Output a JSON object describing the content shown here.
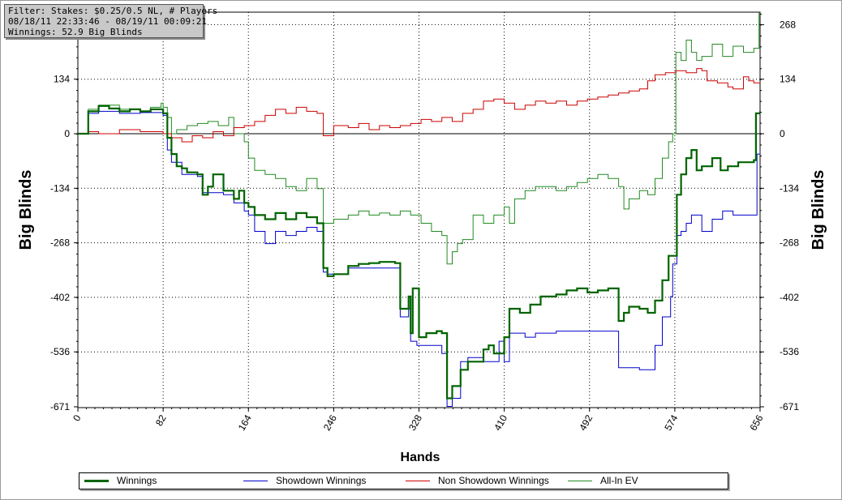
{
  "info_box": {
    "line1": "Filter: Stakes: $0.25/0.5 NL, # Players",
    "line2": "08/18/11 22:33:46 - 08/19/11 00:09:21",
    "line3": "Winnings: 52.9 Big Blinds"
  },
  "chart_data": {
    "type": "line",
    "xlabel": "Hands",
    "ylabel": "Big Blinds",
    "xlim": [
      0,
      656
    ],
    "ylim": [
      -671,
      300
    ],
    "x_ticks": [
      "0",
      "82",
      "164",
      "246",
      "328",
      "410",
      "492",
      "574",
      "656"
    ],
    "y_ticks": [
      "268",
      "134",
      "0",
      "-134",
      "-268",
      "-402",
      "-536",
      "-671"
    ],
    "grid": true,
    "legend_position": "bottom",
    "series": [
      {
        "name": "Winnings",
        "color": "#006400",
        "points": [
          [
            0,
            0
          ],
          [
            10,
            55
          ],
          [
            20,
            68
          ],
          [
            30,
            62
          ],
          [
            40,
            55
          ],
          [
            50,
            60
          ],
          [
            60,
            55
          ],
          [
            70,
            60
          ],
          [
            82,
            50
          ],
          [
            86,
            -10
          ],
          [
            90,
            -50
          ],
          [
            95,
            -80
          ],
          [
            100,
            -85
          ],
          [
            105,
            -95
          ],
          [
            115,
            -100
          ],
          [
            120,
            -150
          ],
          [
            125,
            -130
          ],
          [
            130,
            -100
          ],
          [
            140,
            -140
          ],
          [
            150,
            -160
          ],
          [
            155,
            -140
          ],
          [
            160,
            -170
          ],
          [
            164,
            -180
          ],
          [
            170,
            -200
          ],
          [
            180,
            -210
          ],
          [
            190,
            -195
          ],
          [
            200,
            -210
          ],
          [
            210,
            -195
          ],
          [
            220,
            -205
          ],
          [
            230,
            -220
          ],
          [
            236,
            -330
          ],
          [
            240,
            -350
          ],
          [
            246,
            -345
          ],
          [
            260,
            -325
          ],
          [
            270,
            -320
          ],
          [
            280,
            -318
          ],
          [
            290,
            -315
          ],
          [
            305,
            -318
          ],
          [
            310,
            -430
          ],
          [
            318,
            -400
          ],
          [
            320,
            -490
          ],
          [
            322,
            -380
          ],
          [
            326,
            -380
          ],
          [
            328,
            -500
          ],
          [
            335,
            -490
          ],
          [
            345,
            -485
          ],
          [
            350,
            -490
          ],
          [
            355,
            -650
          ],
          [
            360,
            -620
          ],
          [
            368,
            -580
          ],
          [
            375,
            -560
          ],
          [
            382,
            -560
          ],
          [
            390,
            -530
          ],
          [
            395,
            -520
          ],
          [
            400,
            -540
          ],
          [
            410,
            -500
          ],
          [
            415,
            -430
          ],
          [
            425,
            -440
          ],
          [
            435,
            -420
          ],
          [
            445,
            -400
          ],
          [
            460,
            -395
          ],
          [
            470,
            -385
          ],
          [
            480,
            -380
          ],
          [
            490,
            -390
          ],
          [
            500,
            -385
          ],
          [
            510,
            -380
          ],
          [
            520,
            -460
          ],
          [
            525,
            -440
          ],
          [
            530,
            -425
          ],
          [
            540,
            -430
          ],
          [
            548,
            -440
          ],
          [
            555,
            -410
          ],
          [
            562,
            -360
          ],
          [
            568,
            -300
          ],
          [
            572,
            -300
          ],
          [
            576,
            -150
          ],
          [
            580,
            -100
          ],
          [
            585,
            -60
          ],
          [
            590,
            -40
          ],
          [
            595,
            -90
          ],
          [
            600,
            -80
          ],
          [
            605,
            -80
          ],
          [
            610,
            -60
          ],
          [
            618,
            -90
          ],
          [
            625,
            -80
          ],
          [
            635,
            -70
          ],
          [
            645,
            -70
          ],
          [
            650,
            -65
          ],
          [
            652,
            50
          ],
          [
            656,
            55
          ]
        ]
      },
      {
        "name": "Showdown Winnings",
        "color": "#0000cc",
        "points": [
          [
            0,
            0
          ],
          [
            10,
            50
          ],
          [
            20,
            55
          ],
          [
            40,
            50
          ],
          [
            60,
            52
          ],
          [
            82,
            45
          ],
          [
            86,
            -40
          ],
          [
            90,
            -70
          ],
          [
            100,
            -100
          ],
          [
            115,
            -105
          ],
          [
            120,
            -145
          ],
          [
            140,
            -150
          ],
          [
            150,
            -170
          ],
          [
            160,
            -190
          ],
          [
            164,
            -200
          ],
          [
            170,
            -240
          ],
          [
            180,
            -270
          ],
          [
            190,
            -240
          ],
          [
            200,
            -250
          ],
          [
            210,
            -240
          ],
          [
            220,
            -230
          ],
          [
            230,
            -240
          ],
          [
            236,
            -340
          ],
          [
            240,
            -345
          ],
          [
            246,
            -345
          ],
          [
            260,
            -330
          ],
          [
            280,
            -330
          ],
          [
            300,
            -330
          ],
          [
            305,
            -330
          ],
          [
            310,
            -450
          ],
          [
            318,
            -430
          ],
          [
            320,
            -510
          ],
          [
            326,
            -520
          ],
          [
            330,
            -520
          ],
          [
            345,
            -520
          ],
          [
            350,
            -540
          ],
          [
            355,
            -670
          ],
          [
            360,
            -650
          ],
          [
            368,
            -560
          ],
          [
            375,
            -550
          ],
          [
            390,
            -560
          ],
          [
            400,
            -560
          ],
          [
            405,
            -510
          ],
          [
            410,
            -560
          ],
          [
            415,
            -490
          ],
          [
            430,
            -500
          ],
          [
            440,
            -490
          ],
          [
            460,
            -485
          ],
          [
            480,
            -485
          ],
          [
            500,
            -485
          ],
          [
            510,
            -485
          ],
          [
            520,
            -575
          ],
          [
            530,
            -575
          ],
          [
            540,
            -580
          ],
          [
            548,
            -580
          ],
          [
            555,
            -520
          ],
          [
            562,
            -450
          ],
          [
            570,
            -400
          ],
          [
            572,
            -320
          ],
          [
            576,
            -250
          ],
          [
            580,
            -240
          ],
          [
            585,
            -220
          ],
          [
            590,
            -200
          ],
          [
            600,
            -240
          ],
          [
            605,
            -240
          ],
          [
            610,
            -210
          ],
          [
            620,
            -190
          ],
          [
            630,
            -200
          ],
          [
            645,
            -200
          ],
          [
            650,
            -200
          ],
          [
            653,
            -50
          ],
          [
            656,
            -40
          ]
        ]
      },
      {
        "name": "Non Showdown Winnings",
        "color": "#cc0000",
        "points": [
          [
            0,
            0
          ],
          [
            10,
            5
          ],
          [
            20,
            0
          ],
          [
            40,
            10
          ],
          [
            60,
            5
          ],
          [
            82,
            0
          ],
          [
            90,
            -10
          ],
          [
            100,
            -20
          ],
          [
            110,
            -5
          ],
          [
            120,
            -10
          ],
          [
            130,
            5
          ],
          [
            140,
            -5
          ],
          [
            150,
            15
          ],
          [
            160,
            20
          ],
          [
            170,
            30
          ],
          [
            180,
            45
          ],
          [
            190,
            60
          ],
          [
            200,
            50
          ],
          [
            210,
            65
          ],
          [
            220,
            55
          ],
          [
            230,
            50
          ],
          [
            236,
            -5
          ],
          [
            246,
            20
          ],
          [
            260,
            15
          ],
          [
            270,
            25
          ],
          [
            280,
            10
          ],
          [
            290,
            20
          ],
          [
            300,
            15
          ],
          [
            310,
            20
          ],
          [
            320,
            25
          ],
          [
            330,
            35
          ],
          [
            340,
            30
          ],
          [
            350,
            40
          ],
          [
            360,
            30
          ],
          [
            370,
            50
          ],
          [
            380,
            60
          ],
          [
            390,
            80
          ],
          [
            400,
            85
          ],
          [
            410,
            75
          ],
          [
            420,
            60
          ],
          [
            430,
            70
          ],
          [
            440,
            80
          ],
          [
            450,
            75
          ],
          [
            460,
            80
          ],
          [
            470,
            70
          ],
          [
            480,
            80
          ],
          [
            490,
            85
          ],
          [
            500,
            90
          ],
          [
            510,
            95
          ],
          [
            520,
            100
          ],
          [
            530,
            105
          ],
          [
            540,
            110
          ],
          [
            548,
            130
          ],
          [
            555,
            145
          ],
          [
            565,
            150
          ],
          [
            575,
            155
          ],
          [
            585,
            150
          ],
          [
            595,
            160
          ],
          [
            600,
            155
          ],
          [
            605,
            130
          ],
          [
            615,
            125
          ],
          [
            625,
            115
          ],
          [
            630,
            110
          ],
          [
            640,
            140
          ],
          [
            645,
            130
          ],
          [
            650,
            125
          ],
          [
            656,
            128
          ]
        ]
      },
      {
        "name": "All-In EV",
        "color": "#228b22",
        "points": [
          [
            0,
            0
          ],
          [
            10,
            60
          ],
          [
            20,
            70
          ],
          [
            40,
            60
          ],
          [
            60,
            55
          ],
          [
            70,
            65
          ],
          [
            80,
            75
          ],
          [
            82,
            65
          ],
          [
            86,
            40
          ],
          [
            90,
            0
          ],
          [
            95,
            10
          ],
          [
            105,
            20
          ],
          [
            115,
            25
          ],
          [
            125,
            30
          ],
          [
            135,
            20
          ],
          [
            145,
            40
          ],
          [
            150,
            0
          ],
          [
            160,
            -20
          ],
          [
            164,
            -60
          ],
          [
            170,
            -90
          ],
          [
            180,
            -100
          ],
          [
            190,
            -110
          ],
          [
            200,
            -130
          ],
          [
            210,
            -140
          ],
          [
            220,
            -110
          ],
          [
            230,
            -135
          ],
          [
            236,
            -220
          ],
          [
            246,
            -210
          ],
          [
            260,
            -200
          ],
          [
            270,
            -190
          ],
          [
            280,
            -200
          ],
          [
            290,
            -195
          ],
          [
            300,
            -200
          ],
          [
            310,
            -190
          ],
          [
            320,
            -200
          ],
          [
            330,
            -220
          ],
          [
            340,
            -240
          ],
          [
            350,
            -250
          ],
          [
            355,
            -320
          ],
          [
            360,
            -290
          ],
          [
            365,
            -270
          ],
          [
            370,
            -260
          ],
          [
            380,
            -200
          ],
          [
            390,
            -220
          ],
          [
            400,
            -200
          ],
          [
            410,
            -180
          ],
          [
            415,
            -220
          ],
          [
            420,
            -160
          ],
          [
            430,
            -140
          ],
          [
            440,
            -130
          ],
          [
            450,
            -130
          ],
          [
            460,
            -140
          ],
          [
            470,
            -130
          ],
          [
            480,
            -120
          ],
          [
            490,
            -110
          ],
          [
            500,
            -100
          ],
          [
            510,
            -110
          ],
          [
            520,
            -130
          ],
          [
            525,
            -185
          ],
          [
            530,
            -160
          ],
          [
            540,
            -140
          ],
          [
            548,
            -150
          ],
          [
            555,
            -110
          ],
          [
            562,
            -60
          ],
          [
            568,
            -20
          ],
          [
            572,
            0
          ],
          [
            575,
            200
          ],
          [
            580,
            180
          ],
          [
            585,
            230
          ],
          [
            590,
            200
          ],
          [
            595,
            180
          ],
          [
            600,
            190
          ],
          [
            610,
            220
          ],
          [
            620,
            190
          ],
          [
            630,
            215
          ],
          [
            640,
            200
          ],
          [
            650,
            210
          ],
          [
            655,
            300
          ],
          [
            656,
            300
          ]
        ]
      }
    ]
  }
}
